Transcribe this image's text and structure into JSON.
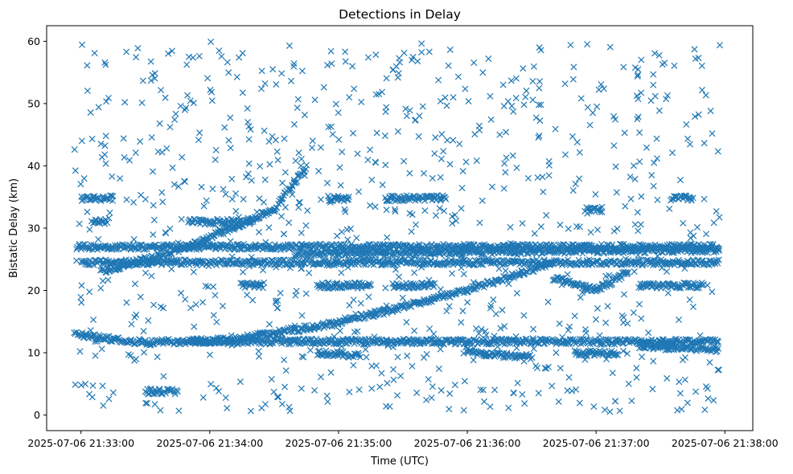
{
  "chart_data": {
    "type": "scatter",
    "title": "Detections in Delay",
    "xlabel": "Time (UTC)",
    "ylabel": "Bistatic Delay (km)",
    "marker": "x",
    "color": "#1f77b4",
    "grid": false,
    "legend": "none",
    "xlim": [
      "2025-07-06 21:32:44",
      "2025-07-06 21:38:13"
    ],
    "ylim": [
      -2.5,
      62.5
    ],
    "xticks": [
      "2025-07-06 21:33:00",
      "2025-07-06 21:34:00",
      "2025-07-06 21:35:00",
      "2025-07-06 21:36:00",
      "2025-07-06 21:37:00",
      "2025-07-06 21:38:00"
    ],
    "yticks": [
      0,
      10,
      20,
      30,
      40,
      50,
      60
    ],
    "tracks": [
      {
        "from": [
          "2025-07-06 21:32:57",
          13.0
        ],
        "to": [
          "2025-07-06 21:33:30",
          11.6
        ]
      },
      {
        "from": [
          "2025-07-06 21:33:30",
          11.6
        ],
        "to": [
          "2025-07-06 21:34:10",
          12.1
        ]
      },
      {
        "from": [
          "2025-07-06 21:34:10",
          12.1
        ],
        "to": [
          "2025-07-06 21:35:00",
          14.8
        ]
      },
      {
        "from": [
          "2025-07-06 21:35:00",
          14.8
        ],
        "to": [
          "2025-07-06 21:36:00",
          20.0
        ]
      },
      {
        "from": [
          "2025-07-06 21:36:00",
          20.0
        ],
        "to": [
          "2025-07-06 21:36:40",
          24.5
        ]
      },
      {
        "from": [
          "2025-07-06 21:33:10",
          23.0
        ],
        "to": [
          "2025-07-06 21:33:50",
          27.0
        ]
      },
      {
        "from": [
          "2025-07-06 21:33:50",
          27.0
        ],
        "to": [
          "2025-07-06 21:34:30",
          33.0
        ]
      },
      {
        "from": [
          "2025-07-06 21:34:30",
          33.0
        ],
        "to": [
          "2025-07-06 21:34:45",
          40.0
        ]
      },
      {
        "from": [
          "2025-07-06 21:32:58",
          27.0
        ],
        "to": [
          "2025-07-06 21:37:57",
          27.0
        ]
      },
      {
        "from": [
          "2025-07-06 21:33:00",
          24.5
        ],
        "to": [
          "2025-07-06 21:37:57",
          24.5
        ]
      },
      {
        "from": [
          "2025-07-06 21:34:40",
          26.0
        ],
        "to": [
          "2025-07-06 21:37:57",
          26.5
        ]
      },
      {
        "from": [
          "2025-07-06 21:33:00",
          34.8
        ],
        "to": [
          "2025-07-06 21:33:15",
          34.8
        ]
      },
      {
        "from": [
          "2025-07-06 21:34:55",
          34.8
        ],
        "to": [
          "2025-07-06 21:35:05",
          34.8
        ]
      },
      {
        "from": [
          "2025-07-06 21:35:22",
          34.8
        ],
        "to": [
          "2025-07-06 21:35:50",
          34.8
        ]
      },
      {
        "from": [
          "2025-07-06 21:37:35",
          34.8
        ],
        "to": [
          "2025-07-06 21:37:45",
          34.8
        ]
      },
      {
        "from": [
          "2025-07-06 21:33:05",
          31.0
        ],
        "to": [
          "2025-07-06 21:33:12",
          31.0
        ]
      },
      {
        "from": [
          "2025-07-06 21:33:50",
          31.0
        ],
        "to": [
          "2025-07-06 21:34:20",
          31.0
        ]
      },
      {
        "from": [
          "2025-07-06 21:36:55",
          33.0
        ],
        "to": [
          "2025-07-06 21:37:03",
          33.0
        ]
      },
      {
        "from": [
          "2025-07-06 21:34:15",
          20.8
        ],
        "to": [
          "2025-07-06 21:34:25",
          20.8
        ]
      },
      {
        "from": [
          "2025-07-06 21:34:50",
          20.8
        ],
        "to": [
          "2025-07-06 21:35:15",
          20.8
        ]
      },
      {
        "from": [
          "2025-07-06 21:35:25",
          20.8
        ],
        "to": [
          "2025-07-06 21:35:45",
          20.8
        ]
      },
      {
        "from": [
          "2025-07-06 21:37:20",
          20.8
        ],
        "to": [
          "2025-07-06 21:37:50",
          20.8
        ]
      },
      {
        "from": [
          "2025-07-06 21:33:50",
          11.8
        ],
        "to": [
          "2025-07-06 21:37:57",
          11.8
        ]
      },
      {
        "from": [
          "2025-07-06 21:36:00",
          10.0
        ],
        "to": [
          "2025-07-06 21:36:30",
          9.3
        ]
      },
      {
        "from": [
          "2025-07-06 21:37:20",
          11.0
        ],
        "to": [
          "2025-07-06 21:37:57",
          10.5
        ]
      },
      {
        "from": [
          "2025-07-06 21:36:50",
          10.0
        ],
        "to": [
          "2025-07-06 21:37:10",
          10.0
        ]
      },
      {
        "from": [
          "2025-07-06 21:34:50",
          10.0
        ],
        "to": [
          "2025-07-06 21:35:10",
          9.5
        ]
      },
      {
        "from": [
          "2025-07-06 21:33:30",
          3.8
        ],
        "to": [
          "2025-07-06 21:33:45",
          3.8
        ]
      },
      {
        "from": [
          "2025-07-06 21:36:40",
          22.0
        ],
        "to": [
          "2025-07-06 21:37:00",
          20.0
        ]
      },
      {
        "from": [
          "2025-07-06 21:37:00",
          20.0
        ],
        "to": [
          "2025-07-06 21:37:15",
          23.0
        ]
      }
    ],
    "clutter": {
      "x_range": [
        "2025-07-06 21:32:57",
        "2025-07-06 21:37:58"
      ],
      "y_range": [
        0.5,
        60.0
      ]
    }
  }
}
